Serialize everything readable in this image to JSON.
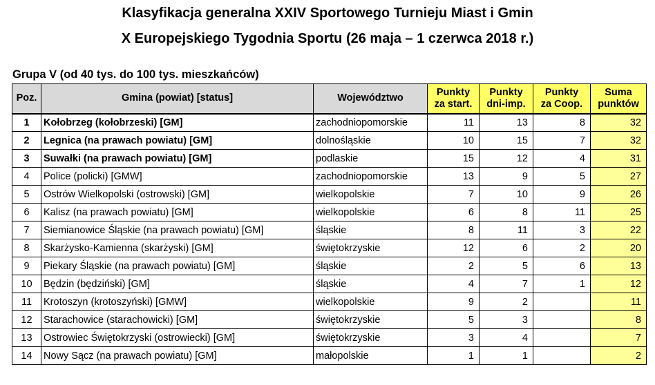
{
  "title_line1": "Klasyfikacja generalna XXIV Sportowego Turnieju Miast i Gmin",
  "title_line2": "X Europejskiego Tygodnia Sportu (26 maja – 1 czerwca 2018 r.)",
  "group_label": "Grupa V  (od 40 tys. do 100 tys. mieszkańców)",
  "headers": {
    "pos": "Poz.",
    "gmina": "Gmina (powiat) [status]",
    "woj": "Województwo",
    "p_start_1": "Punkty",
    "p_start_2": "za start.",
    "p_dni_1": "Punkty",
    "p_dni_2": "dni-imp.",
    "p_coop_1": "Punkty",
    "p_coop_2": "za Coop.",
    "suma_1": "Suma",
    "suma_2": "punktów"
  },
  "colors": {
    "header_gray": "#d9d9d9",
    "header_yellow": "#ffff66",
    "sum_yellow": "#ffff99"
  },
  "rows": [
    {
      "pos": "1",
      "gmina": "Kołobrzeg (kołobrzeski) [GM]",
      "woj": "zachodniopomorskie",
      "start": "11",
      "dni": "13",
      "coop": "8",
      "suma": "32"
    },
    {
      "pos": "2",
      "gmina": "Legnica (na prawach powiatu) [GM]",
      "woj": "dolnośląskie",
      "start": "10",
      "dni": "15",
      "coop": "7",
      "suma": "32"
    },
    {
      "pos": "3",
      "gmina": "Suwałki (na prawach powiatu) [GM]",
      "woj": "podlaskie",
      "start": "15",
      "dni": "12",
      "coop": "4",
      "suma": "31"
    },
    {
      "pos": "4",
      "gmina": "Police (policki) [GMW]",
      "woj": "zachodniopomorskie",
      "start": "13",
      "dni": "9",
      "coop": "5",
      "suma": "27"
    },
    {
      "pos": "5",
      "gmina": "Ostrów Wielkopolski (ostrowski) [GM]",
      "woj": "wielkopolskie",
      "start": "7",
      "dni": "10",
      "coop": "9",
      "suma": "26"
    },
    {
      "pos": "6",
      "gmina": "Kalisz (na prawach powiatu) [GM]",
      "woj": "wielkopolskie",
      "start": "6",
      "dni": "8",
      "coop": "11",
      "suma": "25"
    },
    {
      "pos": "7",
      "gmina": "Siemianowice Śląskie (na prawach powiatu) [GM]",
      "woj": "śląskie",
      "start": "8",
      "dni": "11",
      "coop": "3",
      "suma": "22"
    },
    {
      "pos": "8",
      "gmina": "Skarżysko-Kamienna (skarżyski) [GM]",
      "woj": "świętokrzyskie",
      "start": "12",
      "dni": "6",
      "coop": "2",
      "suma": "20"
    },
    {
      "pos": "9",
      "gmina": "Piekary Śląskie (na prawach powiatu) [GM]",
      "woj": "śląskie",
      "start": "2",
      "dni": "5",
      "coop": "6",
      "suma": "13"
    },
    {
      "pos": "10",
      "gmina": "Będzin (będziński) [GM]",
      "woj": "śląskie",
      "start": "4",
      "dni": "7",
      "coop": "1",
      "suma": "12"
    },
    {
      "pos": "11",
      "gmina": "Krotoszyn (krotoszyński) [GMW]",
      "woj": "wielkopolskie",
      "start": "9",
      "dni": "2",
      "coop": "",
      "suma": "11"
    },
    {
      "pos": "12",
      "gmina": "Starachowice (starachowicki) [GM]",
      "woj": "świętokrzyskie",
      "start": "5",
      "dni": "3",
      "coop": "",
      "suma": "8"
    },
    {
      "pos": "13",
      "gmina": "Ostrowiec Świętokrzyski (ostrowiecki) [GM]",
      "woj": "świętokrzyskie",
      "start": "3",
      "dni": "4",
      "coop": "",
      "suma": "7"
    },
    {
      "pos": "14",
      "gmina": "Nowy Sącz (na prawach powiatu) [GM]",
      "woj": "małopolskie",
      "start": "1",
      "dni": "1",
      "coop": "",
      "suma": "2"
    }
  ]
}
